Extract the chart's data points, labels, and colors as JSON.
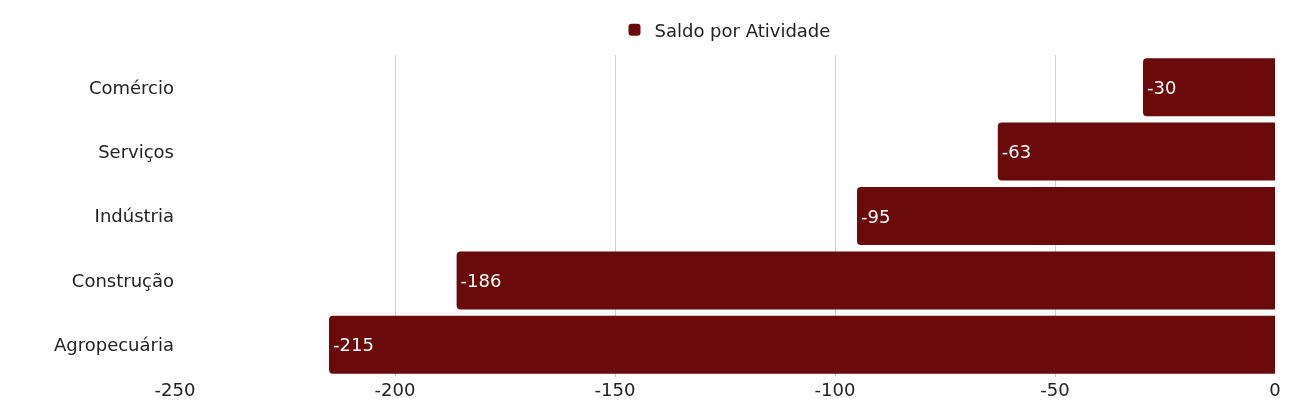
{
  "chart_data": {
    "type": "bar",
    "orientation": "horizontal",
    "categories": [
      "Comércio",
      "Serviços",
      "Indústria",
      "Construção",
      "Agropecuária"
    ],
    "series": [
      {
        "name": "Saldo por Atividade",
        "color": "#6b0a0a",
        "values": [
          -30,
          -63,
          -95,
          -186,
          -215
        ]
      }
    ],
    "xlim": [
      -250,
      0
    ],
    "xticks": [
      -250,
      -200,
      -150,
      -100,
      -50,
      0
    ],
    "grid": "x",
    "legend": "top",
    "data_labels": true
  }
}
